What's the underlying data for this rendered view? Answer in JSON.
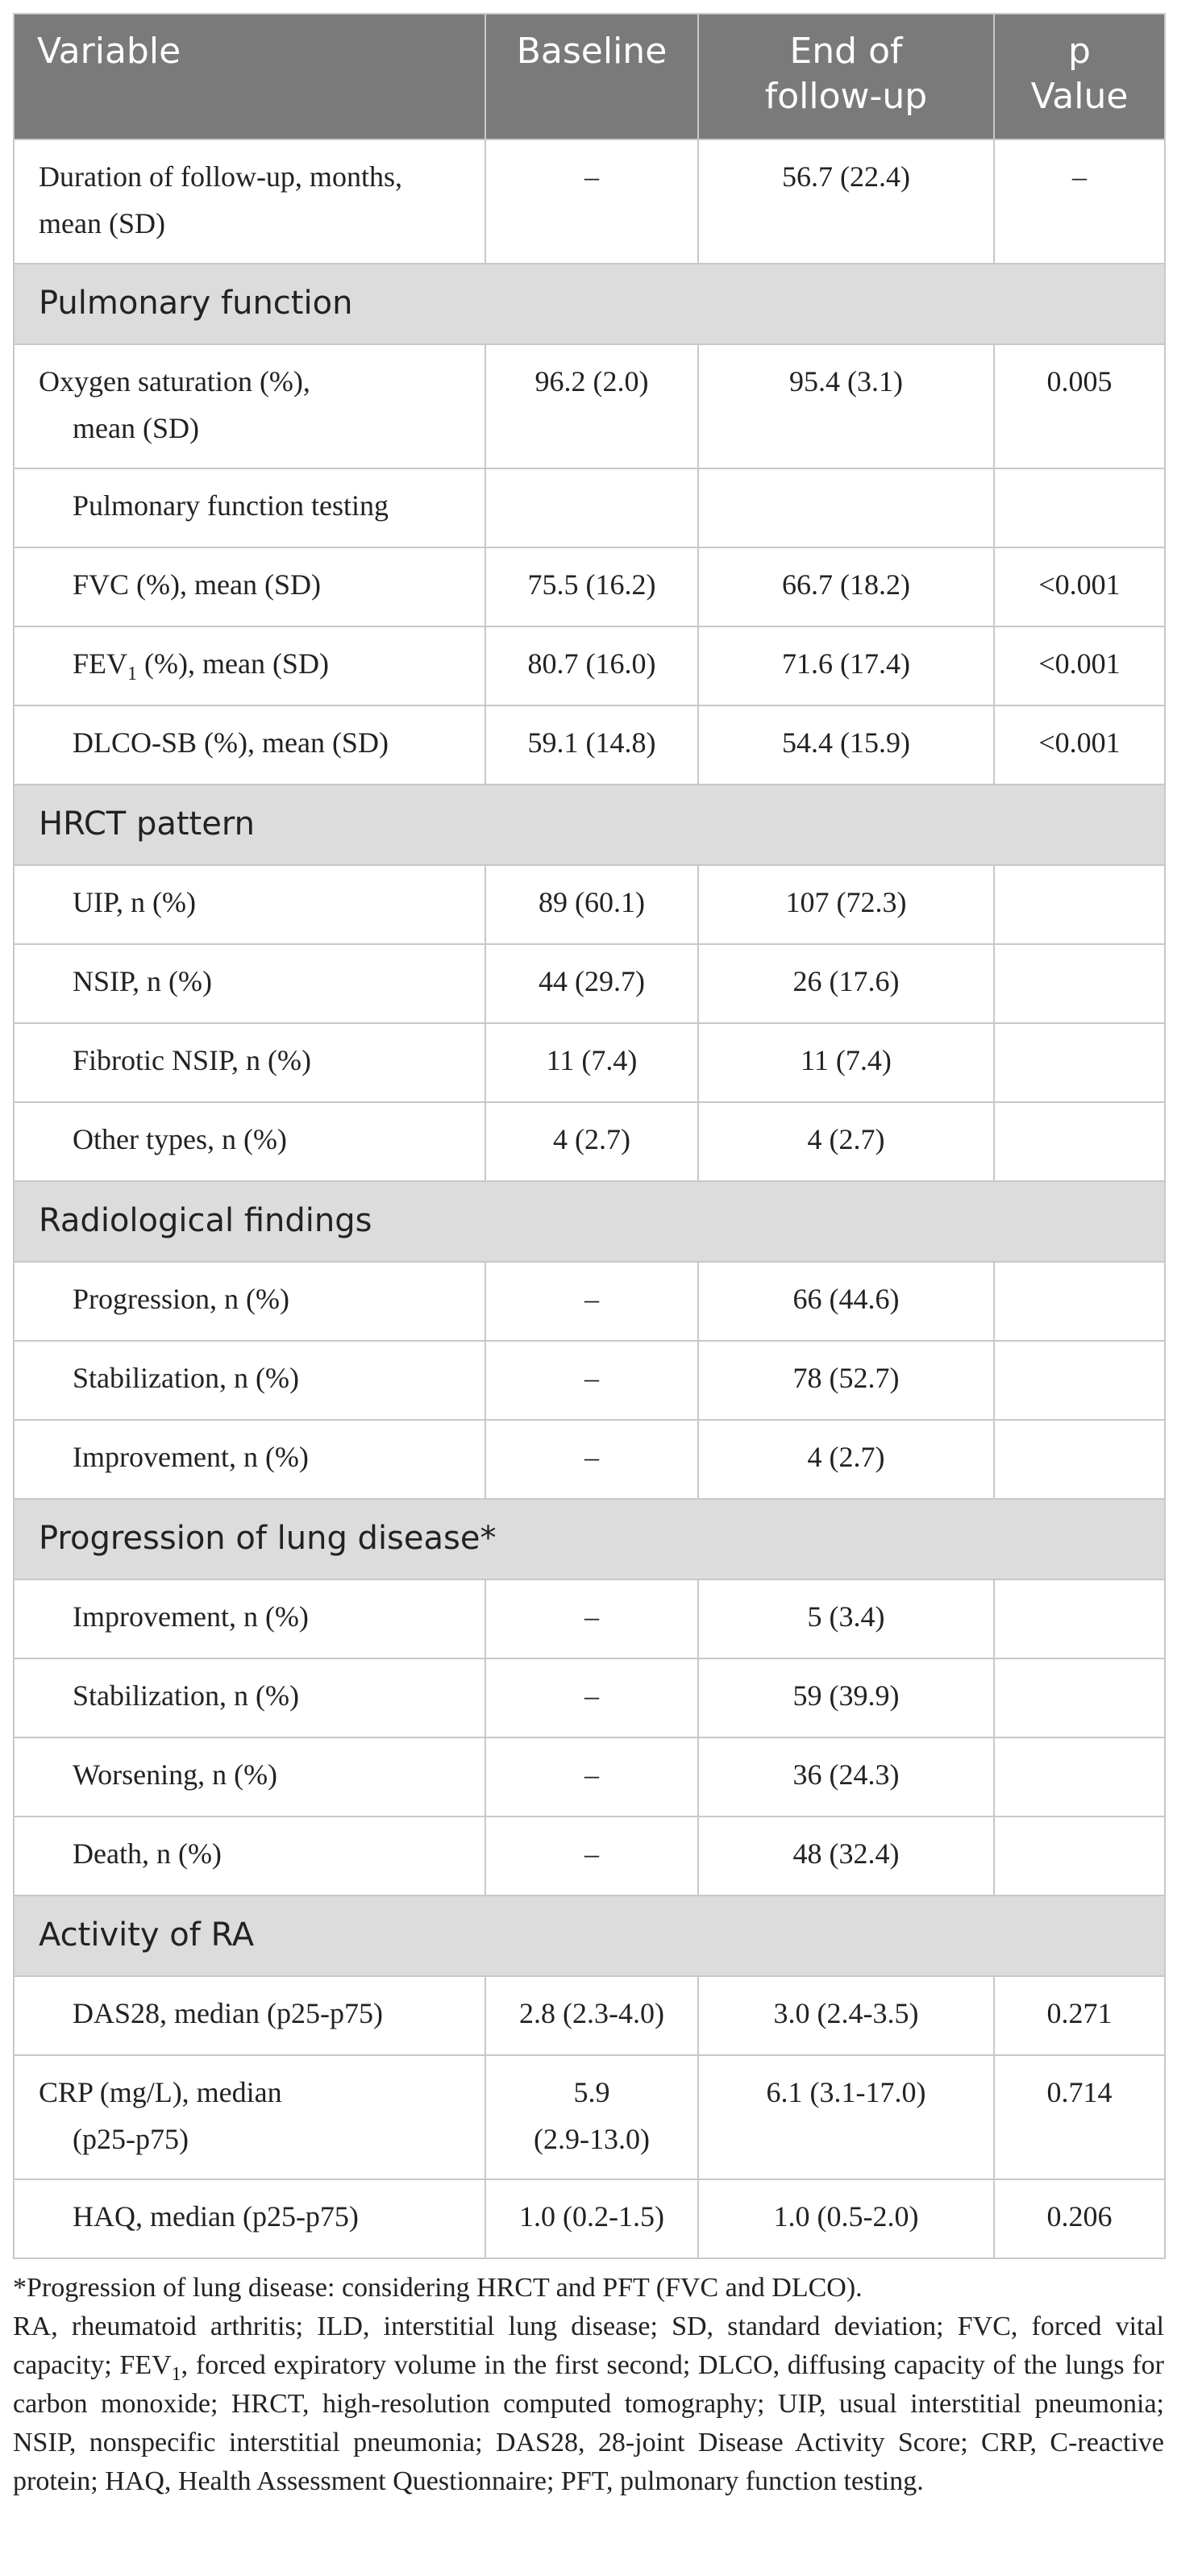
{
  "header": {
    "variable": "Variable",
    "baseline": "Baseline",
    "end_line1": "End of",
    "end_line2": "follow-up",
    "p_line1": "p",
    "p_line2": "Value"
  },
  "rows": {
    "duration": {
      "label_a": "Duration of follow-up, months,",
      "label_b": "mean (SD)",
      "baseline": "–",
      "end": "56.7 (22.4)",
      "p": "–"
    },
    "sec_pulm": "Pulmonary function",
    "oxygen": {
      "label_a": "Oxygen saturation (%),",
      "label_b": "mean (SD)",
      "baseline": "96.2 (2.0)",
      "end": "95.4 (3.1)",
      "p": "0.005"
    },
    "pft": {
      "label": "Pulmonary function testing"
    },
    "fvc": {
      "label": "FVC (%), mean (SD)",
      "baseline": "75.5 (16.2)",
      "end": "66.7 (18.2)",
      "p": "<0.001"
    },
    "fev1": {
      "label_pre": "FEV",
      "label_sub": "1",
      "label_post": " (%), mean (SD)",
      "baseline": "80.7 (16.0)",
      "end": "71.6 (17.4)",
      "p": "<0.001"
    },
    "dlco": {
      "label": "DLCO-SB (%), mean (SD)",
      "baseline": "59.1 (14.8)",
      "end": "54.4 (15.9)",
      "p": "<0.001"
    },
    "sec_hrct": "HRCT pattern",
    "uip": {
      "label": "UIP, n (%)",
      "baseline": "89 (60.1)",
      "end": "107 (72.3)"
    },
    "nsip": {
      "label": "NSIP, n (%)",
      "baseline": "44 (29.7)",
      "end": "26 (17.6)"
    },
    "fnsip": {
      "label": "Fibrotic NSIP, n (%)",
      "baseline": "11 (7.4)",
      "end": "11 (7.4)"
    },
    "other": {
      "label": "Other types, n (%)",
      "baseline": "4 (2.7)",
      "end": "4 (2.7)"
    },
    "sec_radio": "Radiological findings",
    "r_prog": {
      "label": "Progression, n (%)",
      "baseline": "–",
      "end": "66 (44.6)"
    },
    "r_stab": {
      "label": "Stabilization, n (%)",
      "baseline": "–",
      "end": "78 (52.7)"
    },
    "r_impr": {
      "label": "Improvement, n (%)",
      "baseline": "–",
      "end": "4 (2.7)"
    },
    "sec_prog": "Progression of lung disease*",
    "p_impr": {
      "label": "Improvement, n (%)",
      "baseline": "–",
      "end": "5 (3.4)"
    },
    "p_stab": {
      "label": "Stabilization, n (%)",
      "baseline": "–",
      "end": "59 (39.9)"
    },
    "p_wors": {
      "label": "Worsening, n (%)",
      "baseline": "–",
      "end": "36 (24.3)"
    },
    "p_death": {
      "label": "Death, n (%)",
      "baseline": "–",
      "end": "48 (32.4)"
    },
    "sec_ra": "Activity of RA",
    "das28": {
      "label": "DAS28, median (p25-p75)",
      "baseline": "2.8 (2.3-4.0)",
      "end": "3.0 (2.4-3.5)",
      "p": "0.271"
    },
    "crp": {
      "label_a": "CRP (mg/L), median",
      "label_b": "(p25-p75)",
      "baseline_a": "5.9",
      "baseline_b": "(2.9-13.0)",
      "end": "6.1 (3.1-17.0)",
      "p": "0.714"
    },
    "haq": {
      "label": "HAQ, median (p25-p75)",
      "baseline": "1.0 (0.2-1.5)",
      "end": "1.0 (0.5-2.0)",
      "p": "0.206"
    }
  },
  "footnotes": {
    "star": "*Progression of lung disease: considering HRCT and PFT (FVC and DLCO).",
    "abbr_a": "RA, rheumatoid arthritis; ILD, interstitial lung disease; SD, standard deviation; FVC, forced vital capacity; FEV",
    "abbr_sub": "1",
    "abbr_b": ", forced expiratory volume in the first second; DLCO, diffusing capacity of the lungs for carbon monoxide; HRCT, high-resolution computed tomography; UIP, usual interstitial pneumonia; NSIP, nonspecific interstitial pneumonia; DAS28, 28-joint Disease Activity Score; CRP, C-reactive protein; HAQ, Health Assessment Questionnaire; PFT, pulmonary function testing."
  }
}
